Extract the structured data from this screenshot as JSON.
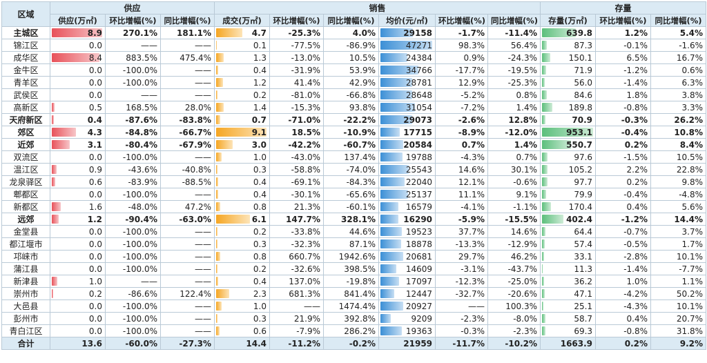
{
  "headers": {
    "region": "区域",
    "supply": "供应",
    "sales": "销售",
    "stock": "存量",
    "supply_cols": [
      "供应(万㎡)",
      "环比增幅(%)",
      "同比增幅(%)"
    ],
    "sales_cols": [
      "成交(万㎡)",
      "环比增幅(%)",
      "同比增幅(%)",
      "均价(元/㎡)",
      "环比增幅(%)",
      "同比增幅(%)"
    ],
    "stock_cols": [
      "存量(万㎡)",
      "环比增幅(%)",
      "同比增幅(%)"
    ]
  },
  "colors": {
    "supply_bar": "#e8525a",
    "deal_bar": "#f5a623",
    "price_bar": "#3b8fd6",
    "stock_bar": "#5cbf7c",
    "header_bg": "#dbeaf4"
  },
  "rows": [
    {
      "region": "主城区",
      "supply": "8.9",
      "s_mom": "270.1%",
      "s_yoy": "181.1%",
      "deal": "4.7",
      "d_mom": "-25.3%",
      "d_yoy": "4.0%",
      "price": "29158",
      "p_mom": "-1.7%",
      "p_yoy": "-11.4%",
      "stock": "639.8",
      "k_mom": "1.2%",
      "k_yoy": "5.4%",
      "bold": true
    },
    {
      "region": "锦江区",
      "supply": "0.0",
      "s_mom": "——",
      "s_yoy": "——",
      "deal": "0.1",
      "d_mom": "-77.5%",
      "d_yoy": "-86.9%",
      "price": "47271",
      "p_mom": "98.3%",
      "p_yoy": "56.4%",
      "stock": "87.3",
      "k_mom": "-0.1%",
      "k_yoy": "-1.6%"
    },
    {
      "region": "成华区",
      "supply": "8.4",
      "s_mom": "883.5%",
      "s_yoy": "475.4%",
      "deal": "1.3",
      "d_mom": "-13.0%",
      "d_yoy": "10.5%",
      "price": "24384",
      "p_mom": "0.9%",
      "p_yoy": "-24.3%",
      "stock": "150.1",
      "k_mom": "6.5%",
      "k_yoy": "16.7%"
    },
    {
      "region": "金牛区",
      "supply": "0.0",
      "s_mom": "-100.0%",
      "s_yoy": "——",
      "deal": "0.4",
      "d_mom": "-31.9%",
      "d_yoy": "53.9%",
      "price": "34766",
      "p_mom": "-17.7%",
      "p_yoy": "-19.5%",
      "stock": "71.9",
      "k_mom": "-1.2%",
      "k_yoy": "0.6%"
    },
    {
      "region": "青羊区",
      "supply": "0.0",
      "s_mom": "-100.0%",
      "s_yoy": "——",
      "deal": "1.2",
      "d_mom": "41.4%",
      "d_yoy": "42.9%",
      "price": "28781",
      "p_mom": "12.9%",
      "p_yoy": "-25.3%",
      "stock": "56.0",
      "k_mom": "-1.4%",
      "k_yoy": "6.3%"
    },
    {
      "region": "武侯区",
      "supply": "0.0",
      "s_mom": "——",
      "s_yoy": "——",
      "deal": "0.2",
      "d_mom": "-81.0%",
      "d_yoy": "-66.8%",
      "price": "28648",
      "p_mom": "-5.2%",
      "p_yoy": "0.8%",
      "stock": "84.6",
      "k_mom": "1.8%",
      "k_yoy": "3.8%"
    },
    {
      "region": "高新区",
      "supply": "0.5",
      "s_mom": "168.5%",
      "s_yoy": "28.0%",
      "deal": "1.4",
      "d_mom": "-15.3%",
      "d_yoy": "93.8%",
      "price": "31054",
      "p_mom": "-7.2%",
      "p_yoy": "1.4%",
      "stock": "189.8",
      "k_mom": "-0.8%",
      "k_yoy": "3.3%"
    },
    {
      "region": "天府新区",
      "supply": "0.4",
      "s_mom": "-87.6%",
      "s_yoy": "-83.8%",
      "deal": "0.7",
      "d_mom": "-71.0%",
      "d_yoy": "-22.2%",
      "price": "29073",
      "p_mom": "-2.6%",
      "p_yoy": "12.8%",
      "stock": "70.9",
      "k_mom": "-0.3%",
      "k_yoy": "26.2%",
      "bold": true
    },
    {
      "region": "郊区",
      "supply": "4.3",
      "s_mom": "-84.8%",
      "s_yoy": "-66.7%",
      "deal": "9.1",
      "d_mom": "18.5%",
      "d_yoy": "-10.9%",
      "price": "17715",
      "p_mom": "-8.9%",
      "p_yoy": "-12.0%",
      "stock": "953.1",
      "k_mom": "-0.4%",
      "k_yoy": "10.8%",
      "bold": true
    },
    {
      "region": "近郊",
      "supply": "3.1",
      "s_mom": "-80.4%",
      "s_yoy": "-67.9%",
      "deal": "3.0",
      "d_mom": "-42.2%",
      "d_yoy": "-60.7%",
      "price": "20584",
      "p_mom": "0.7%",
      "p_yoy": "1.4%",
      "stock": "550.7",
      "k_mom": "0.2%",
      "k_yoy": "8.4%",
      "bold": true
    },
    {
      "region": "双流区",
      "supply": "0.0",
      "s_mom": "-100.0%",
      "s_yoy": "——",
      "deal": "1.0",
      "d_mom": "-43.0%",
      "d_yoy": "137.4%",
      "price": "19788",
      "p_mom": "-4.3%",
      "p_yoy": "0.7%",
      "stock": "97.6",
      "k_mom": "-1.5%",
      "k_yoy": "10.5%"
    },
    {
      "region": "温江区",
      "supply": "0.9",
      "s_mom": "-43.6%",
      "s_yoy": "-40.8%",
      "deal": "0.3",
      "d_mom": "-58.8%",
      "d_yoy": "-74.0%",
      "price": "25543",
      "p_mom": "14.6%",
      "p_yoy": "30.1%",
      "stock": "105.2",
      "k_mom": "2.2%",
      "k_yoy": "22.8%"
    },
    {
      "region": "龙泉驿区",
      "supply": "0.6",
      "s_mom": "-83.9%",
      "s_yoy": "-88.5%",
      "deal": "0.4",
      "d_mom": "-69.1%",
      "d_yoy": "-84.3%",
      "price": "22040",
      "p_mom": "12.1%",
      "p_yoy": "-0.6%",
      "stock": "97.7",
      "k_mom": "0.2%",
      "k_yoy": "9.8%"
    },
    {
      "region": "郫都区",
      "supply": "0.0",
      "s_mom": "-100.0%",
      "s_yoy": "——",
      "deal": "0.4",
      "d_mom": "-30.1%",
      "d_yoy": "-65.6%",
      "price": "25137",
      "p_mom": "11.1%",
      "p_yoy": "9.1%",
      "stock": "79.9",
      "k_mom": "-0.4%",
      "k_yoy": "-4.8%"
    },
    {
      "region": "新都区",
      "supply": "1.6",
      "s_mom": "-48.0%",
      "s_yoy": "47.2%",
      "deal": "0.8",
      "d_mom": "21.3%",
      "d_yoy": "-60.1%",
      "price": "16579",
      "p_mom": "-4.1%",
      "p_yoy": "-1.1%",
      "stock": "170.4",
      "k_mom": "0.4%",
      "k_yoy": "5.6%"
    },
    {
      "region": "远郊",
      "supply": "1.2",
      "s_mom": "-90.4%",
      "s_yoy": "-63.0%",
      "deal": "6.1",
      "d_mom": "147.7%",
      "d_yoy": "328.1%",
      "price": "16290",
      "p_mom": "-5.9%",
      "p_yoy": "-15.5%",
      "stock": "402.4",
      "k_mom": "-1.2%",
      "k_yoy": "14.4%",
      "bold": true
    },
    {
      "region": "金堂县",
      "supply": "0.0",
      "s_mom": "-100.0%",
      "s_yoy": "——",
      "deal": "0.2",
      "d_mom": "-33.8%",
      "d_yoy": "44.6%",
      "price": "19523",
      "p_mom": "37.7%",
      "p_yoy": "14.6%",
      "stock": "64.4",
      "k_mom": "-0.7%",
      "k_yoy": "3.7%"
    },
    {
      "region": "都江堰市",
      "supply": "0.0",
      "s_mom": "-100.0%",
      "s_yoy": "——",
      "deal": "0.3",
      "d_mom": "-32.3%",
      "d_yoy": "87.1%",
      "price": "18878",
      "p_mom": "-13.3%",
      "p_yoy": "-12.9%",
      "stock": "57.4",
      "k_mom": "-0.5%",
      "k_yoy": "1.7%"
    },
    {
      "region": "邛崃市",
      "supply": "0.0",
      "s_mom": "-100.0%",
      "s_yoy": "——",
      "deal": "0.8",
      "d_mom": "660.7%",
      "d_yoy": "1942.6%",
      "price": "20681",
      "p_mom": "29.7%",
      "p_yoy": "46.2%",
      "stock": "33.1",
      "k_mom": "-2.8%",
      "k_yoy": "10.1%"
    },
    {
      "region": "蒲江县",
      "supply": "0.0",
      "s_mom": "-100.0%",
      "s_yoy": "——",
      "deal": "0.2",
      "d_mom": "-32.6%",
      "d_yoy": "398.5%",
      "price": "14609",
      "p_mom": "-3.1%",
      "p_yoy": "-43.7%",
      "stock": "11.3",
      "k_mom": "-1.4%",
      "k_yoy": "-7.7%"
    },
    {
      "region": "新津县",
      "supply": "1.0",
      "s_mom": "——",
      "s_yoy": "——",
      "deal": "0.4",
      "d_mom": "137.0%",
      "d_yoy": "-19.8%",
      "price": "17097",
      "p_mom": "-12.3%",
      "p_yoy": "-25.0%",
      "stock": "36.2",
      "k_mom": "1.0%",
      "k_yoy": "1.1%"
    },
    {
      "region": "崇州市",
      "supply": "0.2",
      "s_mom": "-86.6%",
      "s_yoy": "122.4%",
      "deal": "2.3",
      "d_mom": "681.3%",
      "d_yoy": "841.4%",
      "price": "12447",
      "p_mom": "-32.7%",
      "p_yoy": "-20.6%",
      "stock": "47.1",
      "k_mom": "-4.2%",
      "k_yoy": "50.2%"
    },
    {
      "region": "大邑县",
      "supply": "0.0",
      "s_mom": "-100.0%",
      "s_yoy": "——",
      "deal": "1.0",
      "d_mom": "——",
      "d_yoy": "1474.4%",
      "price": "20927",
      "p_mom": "——",
      "p_yoy": "100.3%",
      "stock": "25.1",
      "k_mom": "-4.3%",
      "k_yoy": "10.1%"
    },
    {
      "region": "彭州市",
      "supply": "0.0",
      "s_mom": "-100.0%",
      "s_yoy": "——",
      "deal": "0.3",
      "d_mom": "21.9%",
      "d_yoy": "392.8%",
      "price": "9209",
      "p_mom": "-2.3%",
      "p_yoy": "-8.0%",
      "stock": "58.7",
      "k_mom": "0.4%",
      "k_yoy": "20.7%"
    },
    {
      "region": "青白江区",
      "supply": "0.0",
      "s_mom": "-100.0%",
      "s_yoy": "——",
      "deal": "0.6",
      "d_mom": "-7.9%",
      "d_yoy": "286.2%",
      "price": "19363",
      "p_mom": "-0.3%",
      "p_yoy": "-2.3%",
      "stock": "69.3",
      "k_mom": "-0.8%",
      "k_yoy": "31.8%"
    }
  ],
  "total": {
    "region": "合计",
    "supply": "13.6",
    "s_mom": "-60.0%",
    "s_yoy": "-27.3%",
    "deal": "14.4",
    "d_mom": "-11.2%",
    "d_yoy": "-0.2%",
    "price": "21959",
    "p_mom": "-11.7%",
    "p_yoy": "-10.2%",
    "stock": "1663.9",
    "k_mom": "0.2%",
    "k_yoy": "9.2%"
  }
}
